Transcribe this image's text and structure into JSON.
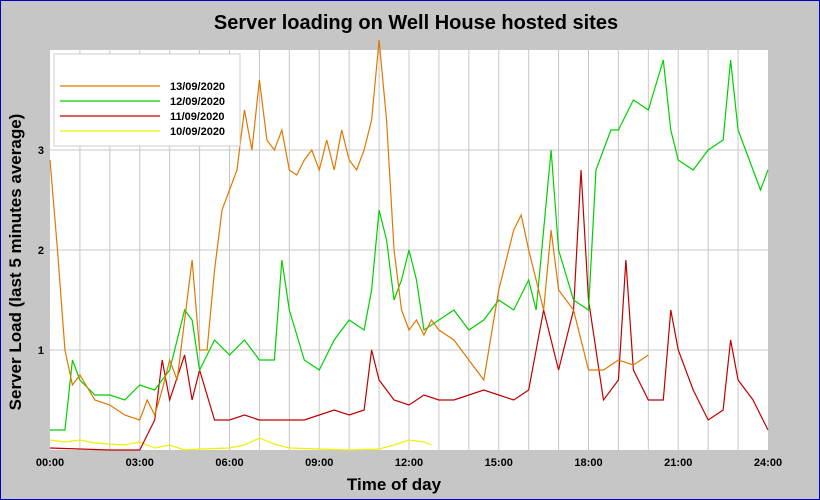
{
  "chart_data": {
    "type": "line",
    "title": "Server loading on Well House hosted sites",
    "xlabel": "Time of day",
    "ylabel": "Server Load (last 5 minutes average)",
    "xlim": [
      0,
      24
    ],
    "ylim": [
      0,
      4
    ],
    "grid": true,
    "legend_position": "top-left",
    "x_ticks": [
      0,
      3,
      6,
      9,
      12,
      15,
      18,
      21,
      24
    ],
    "x_tick_labels": [
      "00:00",
      "03:00",
      "06:00",
      "09:00",
      "12:00",
      "15:00",
      "18:00",
      "21:00",
      "24:00"
    ],
    "y_ticks": [
      1,
      2,
      3
    ],
    "y_tick_labels": [
      "1",
      "2",
      "3"
    ],
    "series": [
      {
        "name": "13/09/2020",
        "color": "#e07800",
        "x": [
          0,
          0.25,
          0.5,
          0.75,
          1,
          1.5,
          2,
          2.5,
          3,
          3.25,
          3.5,
          3.75,
          4,
          4.25,
          4.5,
          4.75,
          5,
          5.25,
          5.5,
          5.75,
          6,
          6.25,
          6.5,
          6.75,
          7,
          7.25,
          7.5,
          7.75,
          8,
          8.25,
          8.5,
          8.75,
          9,
          9.25,
          9.5,
          9.75,
          10,
          10.25,
          10.5,
          10.75,
          11,
          11.25,
          11.5,
          11.75,
          12,
          12.25,
          12.5,
          12.75,
          13,
          13.5,
          14,
          14.5,
          15,
          15.5,
          15.75,
          16,
          16.5,
          16.75,
          17,
          17.5,
          18,
          18.5,
          19,
          19.5,
          20
        ],
        "y": [
          2.9,
          2.0,
          1.0,
          0.65,
          0.75,
          0.5,
          0.45,
          0.35,
          0.3,
          0.5,
          0.35,
          0.6,
          0.9,
          0.7,
          1.3,
          1.9,
          1.0,
          1.0,
          1.8,
          2.4,
          2.6,
          2.8,
          3.4,
          3.0,
          3.7,
          3.1,
          3.0,
          3.2,
          2.8,
          2.75,
          2.9,
          3.0,
          2.8,
          3.1,
          2.8,
          3.2,
          2.9,
          2.8,
          3.0,
          3.3,
          4.1,
          3.3,
          2.0,
          1.4,
          1.2,
          1.3,
          1.15,
          1.3,
          1.2,
          1.1,
          0.9,
          0.7,
          1.6,
          2.2,
          2.35,
          2.0,
          1.4,
          2.2,
          1.6,
          1.4,
          0.8,
          0.8,
          0.9,
          0.85,
          0.95
        ]
      },
      {
        "name": "12/09/2020",
        "color": "#00d000",
        "x": [
          0,
          0.5,
          0.75,
          1,
          1.5,
          2,
          2.5,
          3,
          3.5,
          4,
          4.5,
          4.75,
          5,
          5.5,
          6,
          6.5,
          7,
          7.5,
          7.75,
          8,
          8.5,
          9,
          9.5,
          10,
          10.5,
          10.75,
          11,
          11.25,
          11.5,
          11.75,
          12,
          12.25,
          12.5,
          13,
          13.5,
          14,
          14.5,
          15,
          15.5,
          16,
          16.25,
          16.75,
          17,
          17.5,
          18,
          18.25,
          18.5,
          18.75,
          19,
          19.5,
          20,
          20.5,
          20.75,
          21,
          21.5,
          22,
          22.5,
          22.75,
          23,
          23.5,
          23.75,
          24
        ],
        "y": [
          0.2,
          0.2,
          0.9,
          0.7,
          0.55,
          0.55,
          0.5,
          0.65,
          0.6,
          0.8,
          1.4,
          1.3,
          0.8,
          1.1,
          0.95,
          1.1,
          0.9,
          0.9,
          1.9,
          1.4,
          0.9,
          0.8,
          1.1,
          1.3,
          1.2,
          1.6,
          2.4,
          2.1,
          1.5,
          1.7,
          2.0,
          1.7,
          1.2,
          1.3,
          1.4,
          1.2,
          1.3,
          1.5,
          1.4,
          1.7,
          1.4,
          3.0,
          2.0,
          1.5,
          1.4,
          2.8,
          3.0,
          3.2,
          3.2,
          3.5,
          3.4,
          3.9,
          3.2,
          2.9,
          2.8,
          3.0,
          3.1,
          3.9,
          3.2,
          2.8,
          2.6,
          2.8
        ]
      },
      {
        "name": "11/09/2020",
        "color": "#c00000",
        "x": [
          0,
          1,
          2,
          3,
          3.5,
          3.75,
          4,
          4.5,
          4.75,
          5,
          5.5,
          6,
          6.5,
          7,
          7.5,
          8,
          8.5,
          9,
          9.5,
          10,
          10.5,
          10.75,
          11,
          11.5,
          12,
          12.5,
          13,
          13.5,
          14,
          14.5,
          15,
          15.5,
          16,
          16.5,
          17,
          17.5,
          17.75,
          18,
          18.5,
          19,
          19.25,
          19.5,
          20,
          20.5,
          20.75,
          21,
          21.5,
          22,
          22.5,
          22.75,
          23,
          23.5,
          24
        ],
        "y": [
          0.02,
          0.01,
          0.0,
          0.0,
          0.3,
          0.9,
          0.5,
          0.95,
          0.5,
          0.8,
          0.3,
          0.3,
          0.35,
          0.3,
          0.3,
          0.3,
          0.3,
          0.35,
          0.4,
          0.35,
          0.4,
          1.0,
          0.7,
          0.5,
          0.45,
          0.55,
          0.5,
          0.5,
          0.55,
          0.6,
          0.55,
          0.5,
          0.6,
          1.4,
          0.8,
          1.4,
          2.8,
          1.5,
          0.5,
          0.7,
          1.9,
          0.8,
          0.5,
          0.5,
          1.4,
          1.0,
          0.6,
          0.3,
          0.4,
          1.1,
          0.7,
          0.5,
          0.2
        ]
      },
      {
        "name": "10/09/2020",
        "color": "#f0f000",
        "x": [
          0,
          0.5,
          1,
          1.5,
          2,
          2.5,
          3,
          3.5,
          4,
          4.5,
          5,
          6,
          6.5,
          7,
          7.5,
          8,
          9,
          10,
          11,
          11.5,
          12,
          12.5,
          12.75
        ],
        "y": [
          0.1,
          0.08,
          0.1,
          0.07,
          0.06,
          0.05,
          0.08,
          0.02,
          0.05,
          0.0,
          0.01,
          0.02,
          0.05,
          0.12,
          0.06,
          0.02,
          0.01,
          0.0,
          0.01,
          0.05,
          0.1,
          0.08,
          0.05
        ]
      }
    ]
  }
}
